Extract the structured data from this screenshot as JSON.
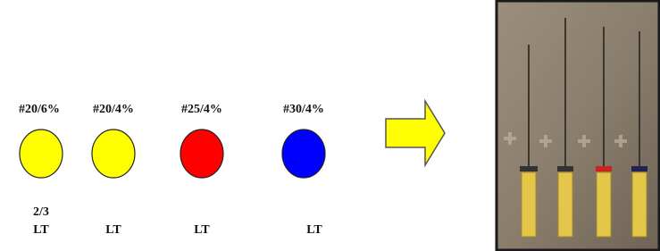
{
  "files": [
    {
      "label": "#20/6%",
      "notes": [
        "2/3",
        "LT"
      ]
    },
    {
      "label": "#20/4%",
      "notes": [
        "LT"
      ]
    },
    {
      "label": "#25/4%",
      "notes": [
        "LT"
      ]
    },
    {
      "label": "#30/4%",
      "notes": [
        "LT"
      ]
    }
  ]
}
